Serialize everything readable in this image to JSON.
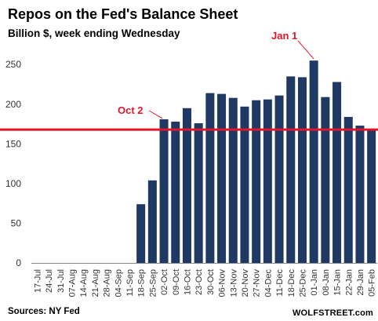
{
  "chart_data": {
    "type": "bar",
    "title": "Repos on the Fed's Balance Sheet",
    "subtitle": "Billion $, week ending Wednesday",
    "categories": [
      "17-Jul",
      "24-Jul",
      "31-Jul",
      "07-Aug",
      "14-Aug",
      "21-Aug",
      "28-Aug",
      "04-Sep",
      "11-Sep",
      "18-Sep",
      "25-Sep",
      "02-Oct",
      "09-Oct",
      "16-Oct",
      "23-Oct",
      "30-Oct",
      "06-Nov",
      "13-Nov",
      "20-Nov",
      "27-Nov",
      "04-Dec",
      "11-Dec",
      "18-Dec",
      "25-Dec",
      "01-Jan",
      "08-Jan",
      "15-Jan",
      "22-Jan",
      "29-Jan",
      "05-Feb"
    ],
    "values": [
      0,
      0,
      0,
      0,
      0,
      0,
      0,
      0,
      0,
      74,
      104,
      181,
      178,
      195,
      176,
      214,
      213,
      208,
      197,
      205,
      206,
      211,
      235,
      234,
      255,
      209,
      228,
      184,
      173,
      168
    ],
    "ylim": [
      0,
      270
    ],
    "yticks": [
      0,
      50,
      100,
      150,
      200,
      250
    ],
    "bar_color": "#1f3864",
    "reference_line": {
      "value": 168,
      "color": "#e0162b"
    },
    "annotations": [
      {
        "text": "Oct 2",
        "category": "02-Oct"
      },
      {
        "text": "Jan 1",
        "category": "01-Jan"
      }
    ],
    "source": "Sources: NY Fed",
    "brand": "WOLFSTREET.com",
    "grid": false
  }
}
